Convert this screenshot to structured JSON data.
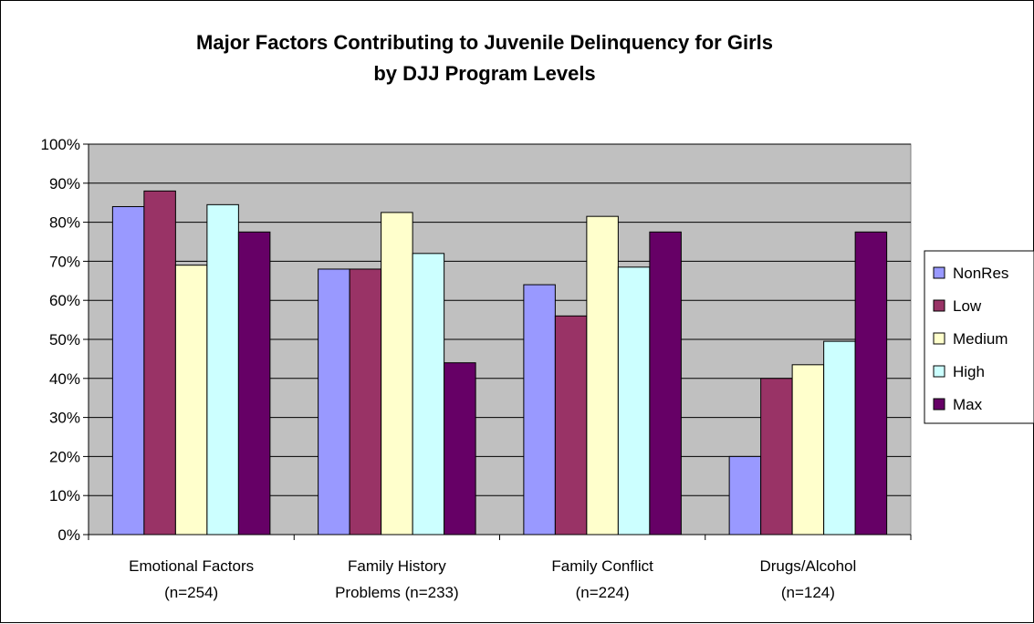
{
  "chart_data": {
    "type": "bar",
    "title": [
      "Major Factors Contributing to Juvenile Delinquency for Girls",
      "by DJJ Program Levels"
    ],
    "categories": [
      [
        "Emotional Factors",
        "(n=254)"
      ],
      [
        "Family History",
        "Problems (n=233)"
      ],
      [
        "Family Conflict",
        "(n=224)"
      ],
      [
        "Drugs/Alcohol",
        "(n=124)"
      ]
    ],
    "series": [
      {
        "name": "NonRes",
        "color": "#9999ff",
        "values": [
          84,
          68,
          64,
          20
        ]
      },
      {
        "name": "Low",
        "color": "#993366",
        "values": [
          88,
          68,
          56,
          40
        ]
      },
      {
        "name": "Medium",
        "color": "#ffffcc",
        "values": [
          69,
          82.5,
          81.5,
          43.5
        ]
      },
      {
        "name": "High",
        "color": "#ccffff",
        "values": [
          84.5,
          72,
          68.5,
          49.5
        ]
      },
      {
        "name": "Max",
        "color": "#660066",
        "values": [
          77.5,
          44,
          77.5,
          77.5
        ]
      }
    ],
    "ylim": [
      0,
      100
    ],
    "yticks": [
      "0%",
      "10%",
      "20%",
      "30%",
      "40%",
      "50%",
      "60%",
      "70%",
      "80%",
      "90%",
      "100%"
    ],
    "grid": true,
    "plot_background": "#c0c0c0",
    "legend_position": "right"
  }
}
